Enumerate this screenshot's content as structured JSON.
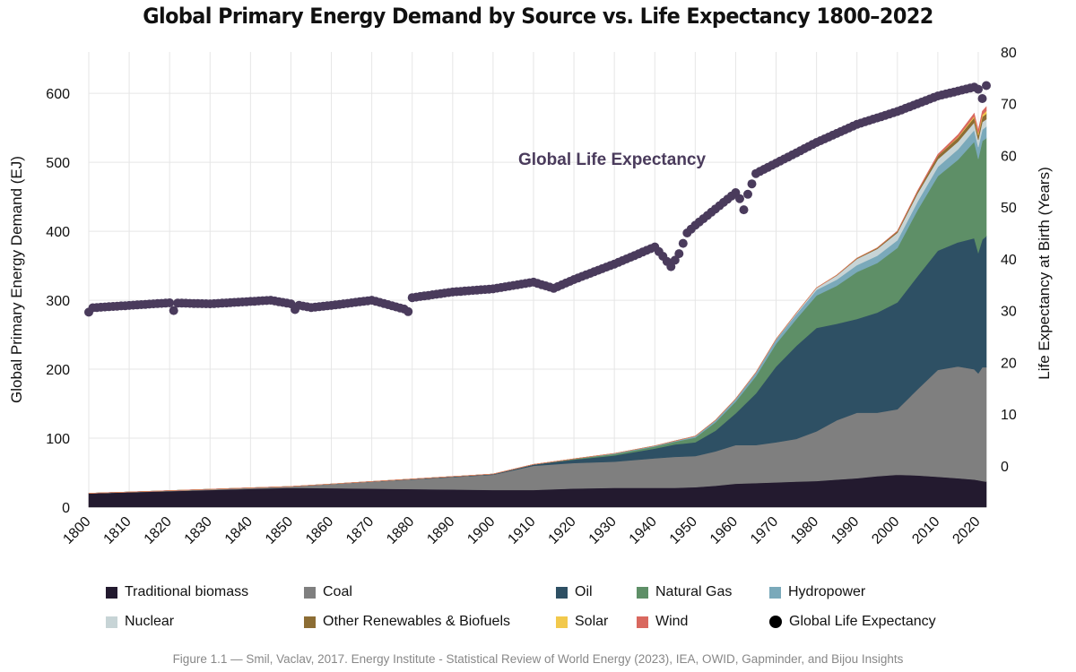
{
  "chart_data": {
    "type": "area",
    "title": "Global Primary Energy Demand by Source vs. Life Expectancy 1800–2022",
    "xlabel": "",
    "ylabel": "Global Primary Energy Demand (EJ)",
    "y2label": "Life Expectancy at Birth (Years)",
    "xlim": [
      1800,
      2022
    ],
    "ylim": [
      0,
      660
    ],
    "y2lim": [
      -8,
      80
    ],
    "x_ticks": [
      1800,
      1810,
      1820,
      1830,
      1840,
      1850,
      1860,
      1870,
      1880,
      1890,
      1900,
      1910,
      1920,
      1930,
      1940,
      1950,
      1960,
      1970,
      1980,
      1990,
      2000,
      2010,
      2020
    ],
    "y_ticks": [
      0,
      100,
      200,
      300,
      400,
      500,
      600
    ],
    "y2_ticks": [
      0,
      10,
      20,
      30,
      40,
      50,
      60,
      70,
      80
    ],
    "grid": true,
    "legend_position": "bottom",
    "annotation": "Global Life Expectancy",
    "caption": "Figure 1.1 — Smil, Vaclav, 2017. Energy Institute - Statistical Review of World Energy (2023), IEA, OWID, Gapminder, and Bijou Insights",
    "stack_years": [
      1800,
      1850,
      1900,
      1910,
      1920,
      1930,
      1940,
      1945,
      1950,
      1955,
      1960,
      1965,
      1970,
      1975,
      1980,
      1985,
      1990,
      1995,
      2000,
      2005,
      2010,
      2015,
      2019,
      2020,
      2021,
      2022
    ],
    "series": [
      {
        "name": "Traditional biomass",
        "color": "#231a2f",
        "values": [
          20,
          28,
          25,
          25,
          27,
          28,
          28,
          28,
          29,
          31,
          34,
          35,
          36,
          37,
          38,
          40,
          42,
          45,
          47,
          46,
          44,
          42,
          40,
          39,
          38,
          37
        ]
      },
      {
        "name": "Coal",
        "color": "#7f7f7f",
        "values": [
          0,
          2,
          22,
          35,
          37,
          38,
          43,
          45,
          45,
          50,
          56,
          55,
          58,
          62,
          72,
          86,
          95,
          92,
          95,
          125,
          155,
          162,
          160,
          155,
          165,
          166
        ]
      },
      {
        "name": "Oil",
        "color": "#2e5064",
        "values": [
          0,
          0,
          1,
          2,
          5,
          9,
          14,
          18,
          20,
          30,
          46,
          75,
          110,
          135,
          150,
          140,
          136,
          145,
          155,
          164,
          173,
          180,
          190,
          175,
          185,
          190
        ]
      },
      {
        "name": "Natural Gas",
        "color": "#5e8f67",
        "values": [
          0,
          0,
          0,
          0,
          1,
          2,
          3,
          4,
          7,
          12,
          17,
          25,
          33,
          39,
          47,
          55,
          68,
          72,
          79,
          96,
          108,
          120,
          140,
          136,
          143,
          142
        ]
      },
      {
        "name": "Hydropower",
        "color": "#7aa9ba",
        "values": [
          0,
          0,
          0,
          0,
          0,
          1,
          1,
          1,
          2,
          3,
          4,
          5,
          6,
          7,
          8,
          9,
          10,
          10.5,
          11,
          12,
          13.5,
          15,
          17,
          17,
          16.5,
          17
        ]
      },
      {
        "name": "Nuclear",
        "color": "#c7d4d6",
        "values": [
          0,
          0,
          0,
          0,
          0,
          0,
          0,
          0,
          0,
          0,
          0,
          0.3,
          0.5,
          1.5,
          3,
          6,
          9,
          10,
          11,
          12,
          11,
          11,
          11,
          10.5,
          11,
          10.5
        ]
      },
      {
        "name": "Other Renewables & Biofuels",
        "color": "#8c6d34",
        "values": [
          0,
          0,
          0,
          0,
          0,
          0,
          0,
          0,
          0,
          0,
          0,
          0,
          0,
          0,
          0,
          0.5,
          1,
          1.5,
          2,
          3,
          5,
          6,
          7,
          7,
          7.5,
          8
        ]
      },
      {
        "name": "Solar",
        "color": "#f2c94c",
        "values": [
          0,
          0,
          0,
          0,
          0,
          0,
          0,
          0,
          0,
          0,
          0,
          0,
          0,
          0,
          0,
          0,
          0,
          0,
          0,
          0,
          0.2,
          1,
          2,
          2.5,
          3,
          4
        ]
      },
      {
        "name": "Wind",
        "color": "#d9685f",
        "values": [
          0,
          0,
          0,
          0,
          0,
          0,
          0,
          0,
          0,
          0,
          0,
          0,
          0,
          0,
          0,
          0,
          0,
          0,
          0.3,
          0.8,
          1.8,
          3,
          4,
          4.5,
          5,
          6
        ]
      }
    ],
    "life_expectancy": {
      "name": "Global Life Expectancy",
      "color": "#4a3b5c",
      "years": [
        1800,
        1820,
        1830,
        1845,
        1850,
        1855,
        1860,
        1870,
        1878,
        1880,
        1890,
        1900,
        1910,
        1915,
        1920,
        1930,
        1940,
        1942,
        1944,
        1946,
        1948,
        1950,
        1960,
        1962,
        1965,
        1970,
        1980,
        1990,
        2000,
        2010,
        2019,
        2020,
        2021,
        2022
      ],
      "values": [
        30.5,
        31.5,
        31.3,
        32,
        31.3,
        30.6,
        31,
        32,
        30.3,
        32.5,
        33.6,
        34.2,
        35.5,
        34.3,
        36,
        39,
        42.3,
        40.5,
        38.5,
        41,
        45,
        46.5,
        52.8,
        50.5,
        56.5,
        58.5,
        62.5,
        66,
        68.5,
        71.5,
        73.2,
        72.8,
        71.5,
        73.5
      ],
      "dips": {
        "1800": 29.7,
        "1821": 30.0,
        "1851": 30.2,
        "1879": 29.8,
        "1962": 49.5,
        "2021": 71.0
      }
    }
  },
  "legend": {
    "items": [
      {
        "label": "Traditional biomass",
        "color": "#231a2f",
        "shape": "square"
      },
      {
        "label": "Coal",
        "color": "#7f7f7f",
        "shape": "square"
      },
      {
        "label": "Oil",
        "color": "#2e5064",
        "shape": "square"
      },
      {
        "label": "Natural Gas",
        "color": "#5e8f67",
        "shape": "square"
      },
      {
        "label": "Hydropower",
        "color": "#7aa9ba",
        "shape": "square"
      },
      {
        "label": "Nuclear",
        "color": "#c7d4d6",
        "shape": "square"
      },
      {
        "label": "Other Renewables & Biofuels",
        "color": "#8c6d34",
        "shape": "square"
      },
      {
        "label": "Solar",
        "color": "#f2c94c",
        "shape": "square"
      },
      {
        "label": "Wind",
        "color": "#d9685f",
        "shape": "square"
      },
      {
        "label": "Global Life Expectancy",
        "color": "#000000",
        "shape": "circle"
      }
    ]
  }
}
